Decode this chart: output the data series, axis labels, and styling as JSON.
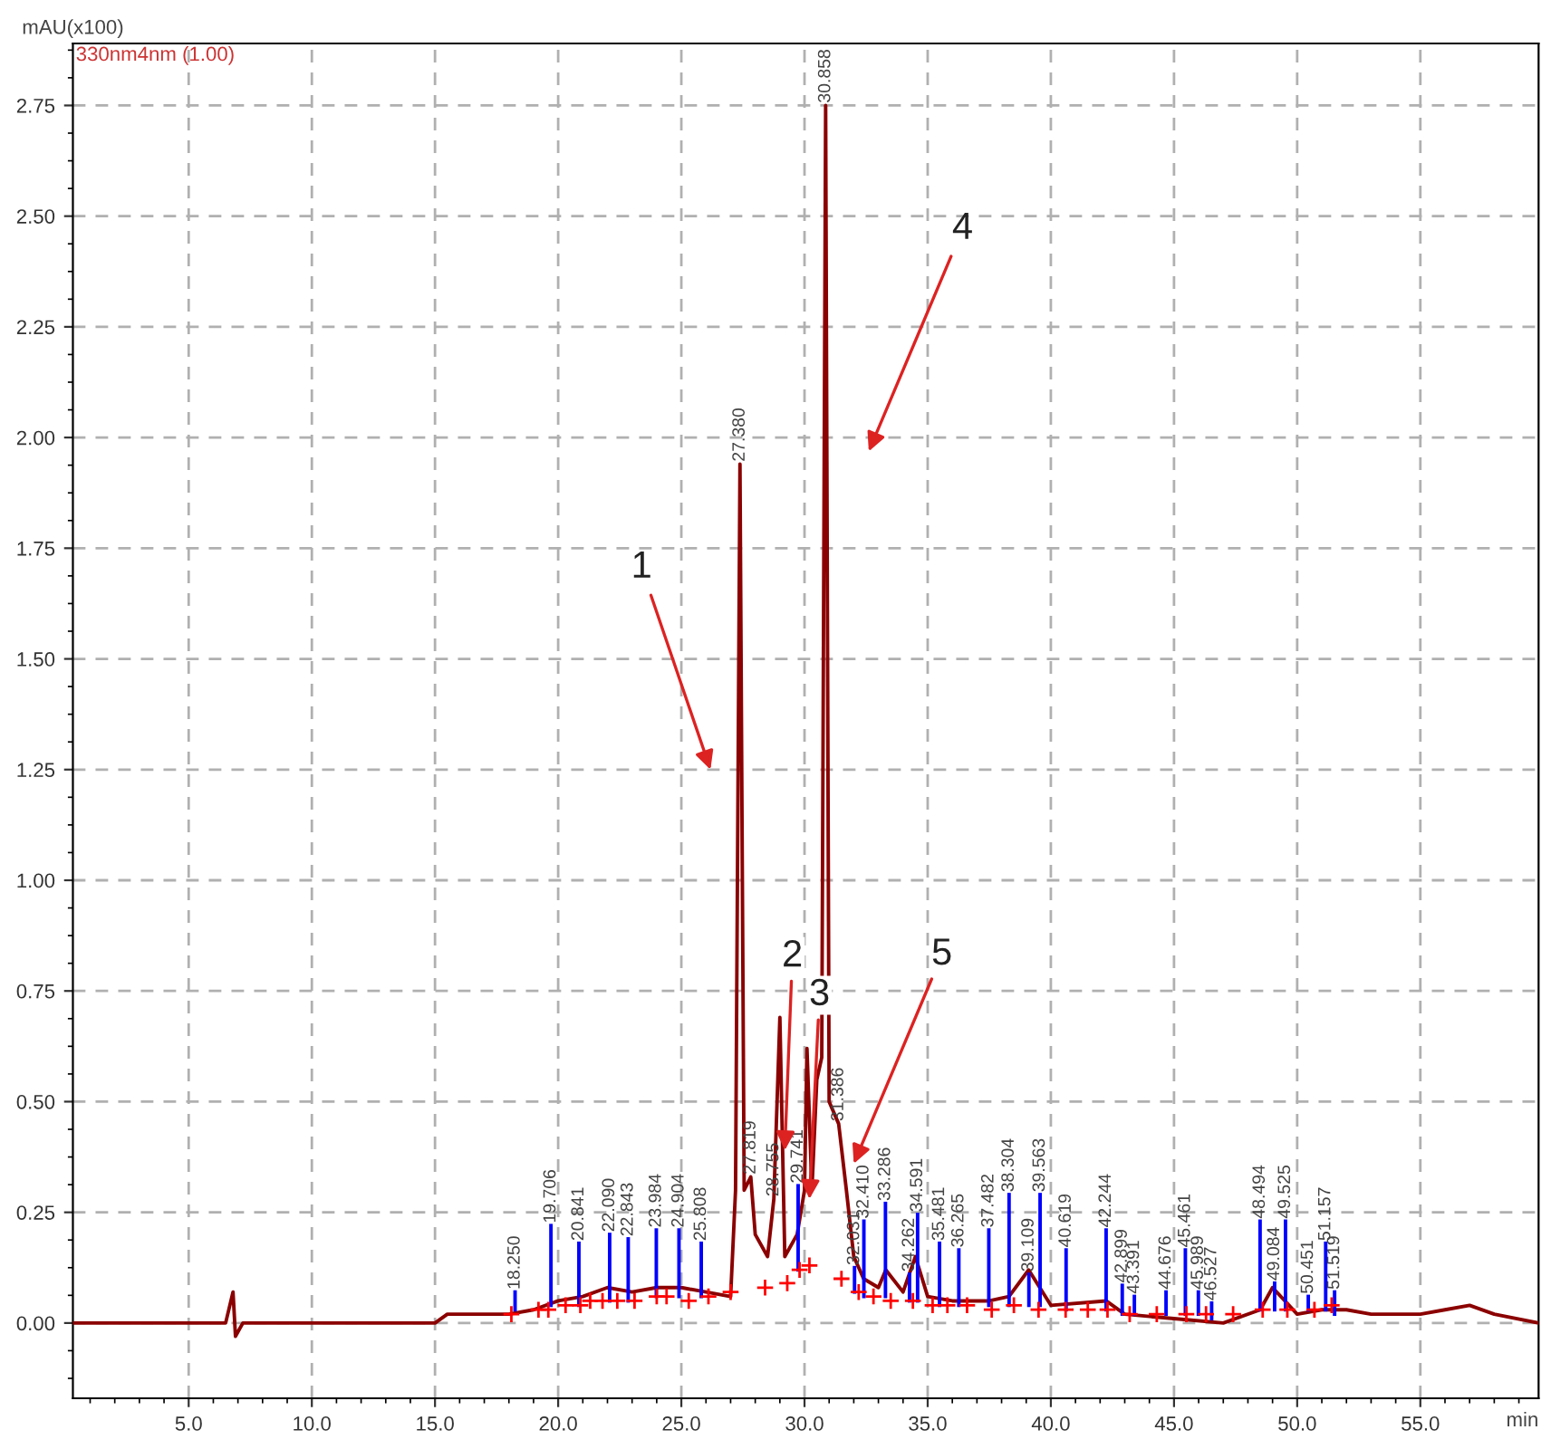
{
  "chart_data": {
    "type": "line",
    "xlabel": "min",
    "ylabel": "mAU(x100)",
    "xlim": [
      0.3,
      59.8
    ],
    "ylim": [
      -0.17,
      2.89
    ],
    "xticks": [
      {
        "value": 5,
        "label": "5.0"
      },
      {
        "value": 10,
        "label": "10.0"
      },
      {
        "value": 15,
        "label": "15.0"
      },
      {
        "value": 20,
        "label": "20.0"
      },
      {
        "value": 25,
        "label": "25.0"
      },
      {
        "value": 30,
        "label": "30.0"
      },
      {
        "value": 35,
        "label": "35.0"
      },
      {
        "value": 40,
        "label": "40.0"
      },
      {
        "value": 45,
        "label": "45.0"
      },
      {
        "value": 50,
        "label": "50.0"
      },
      {
        "value": 55,
        "label": "55.0"
      }
    ],
    "yticks": [
      {
        "value": 0,
        "label": "0.00"
      },
      {
        "value": 0.25,
        "label": "0.25"
      },
      {
        "value": 0.5,
        "label": "0.50"
      },
      {
        "value": 0.75,
        "label": "0.75"
      },
      {
        "value": 1,
        "label": "1.00"
      },
      {
        "value": 1.25,
        "label": "1.25"
      },
      {
        "value": 1.5,
        "label": "1.50"
      },
      {
        "value": 1.75,
        "label": "1.75"
      },
      {
        "value": 2,
        "label": "2.00"
      },
      {
        "value": 2.25,
        "label": "2.25"
      },
      {
        "value": 2.5,
        "label": "2.50"
      },
      {
        "value": 2.75,
        "label": "2.75"
      }
    ],
    "grid": true,
    "legend": false,
    "line_style": "solid",
    "series": [
      {
        "color": "#8b0000",
        "x": [
          0.3,
          6.5,
          6.8,
          6.9,
          7.2,
          15.0,
          15.5,
          18.0,
          19.0,
          20.0,
          21.0,
          22.0,
          23.0,
          24.0,
          25.0,
          26.0,
          27.0,
          27.2,
          27.38,
          27.55,
          27.819,
          28.0,
          28.5,
          28.755,
          29.0,
          29.2,
          29.7,
          30.0,
          30.1,
          30.3,
          30.5,
          30.7,
          30.858,
          31.0,
          31.386,
          31.7,
          32.0,
          32.4,
          33.0,
          33.3,
          34.0,
          34.5,
          35.0,
          36.0,
          37.5,
          38.3,
          39.1,
          40.0,
          42.244,
          43.0,
          45.0,
          47.0,
          48.5,
          49.0,
          50.0,
          51.0,
          52.0,
          53.0,
          55.0,
          56.0,
          57.0,
          58.0,
          59.8
        ],
        "values": [
          0.0,
          0.0,
          0.07,
          -0.03,
          0.0,
          0.0,
          0.02,
          0.02,
          0.03,
          0.05,
          0.06,
          0.08,
          0.07,
          0.08,
          0.08,
          0.07,
          0.06,
          0.3,
          1.94,
          0.3,
          0.33,
          0.2,
          0.15,
          0.28,
          0.69,
          0.15,
          0.2,
          0.3,
          0.62,
          0.3,
          0.55,
          0.6,
          2.75,
          0.5,
          0.45,
          0.3,
          0.15,
          0.1,
          0.08,
          0.12,
          0.07,
          0.15,
          0.06,
          0.05,
          0.05,
          0.06,
          0.12,
          0.04,
          0.05,
          0.02,
          0.01,
          0.0,
          0.03,
          0.08,
          0.02,
          0.03,
          0.03,
          0.02,
          0.02,
          0.03,
          0.04,
          0.02,
          0.0
        ]
      },
      {
        "color": "#0000ff",
        "x": [
          18.25,
          18.25
        ],
        "values": [
          0.03,
          0.07
        ]
      },
      {
        "color": "#0000ff",
        "x": [
          19.706,
          19.706
        ],
        "values": [
          0.04,
          0.22
        ]
      },
      {
        "color": "#0000ff",
        "x": [
          20.841,
          20.841
        ],
        "values": [
          0.04,
          0.18
        ]
      },
      {
        "color": "#0000ff",
        "x": [
          22.09,
          22.09
        ],
        "values": [
          0.05,
          0.2
        ]
      },
      {
        "color": "#0000ff",
        "x": [
          22.843,
          22.843
        ],
        "values": [
          0.05,
          0.19
        ]
      },
      {
        "color": "#0000ff",
        "x": [
          23.984,
          23.984
        ],
        "values": [
          0.06,
          0.21
        ]
      },
      {
        "color": "#0000ff",
        "x": [
          24.904,
          24.904
        ],
        "values": [
          0.06,
          0.21
        ]
      },
      {
        "color": "#0000ff",
        "x": [
          25.808,
          25.808
        ],
        "values": [
          0.06,
          0.18
        ]
      },
      {
        "color": "#0000ff",
        "x": [
          29.741,
          29.741
        ],
        "values": [
          0.12,
          0.31
        ]
      },
      {
        "color": "#0000ff",
        "x": [
          32.031,
          32.031
        ],
        "values": [
          0.07,
          0.125
        ]
      },
      {
        "color": "#0000ff",
        "x": [
          32.41,
          32.41
        ],
        "values": [
          0.06,
          0.23
        ]
      },
      {
        "color": "#0000ff",
        "x": [
          33.286,
          33.286
        ],
        "values": [
          0.06,
          0.27
        ]
      },
      {
        "color": "#0000ff",
        "x": [
          34.262,
          34.262
        ],
        "values": [
          0.05,
          0.11
        ]
      },
      {
        "color": "#0000ff",
        "x": [
          34.591,
          34.591
        ],
        "values": [
          0.05,
          0.245
        ]
      },
      {
        "color": "#0000ff",
        "x": [
          35.481,
          35.481
        ],
        "values": [
          0.04,
          0.18
        ]
      },
      {
        "color": "#0000ff",
        "x": [
          36.265,
          36.265
        ],
        "values": [
          0.04,
          0.165
        ]
      },
      {
        "color": "#0000ff",
        "x": [
          37.482,
          37.482
        ],
        "values": [
          0.04,
          0.21
        ]
      },
      {
        "color": "#0000ff",
        "x": [
          38.304,
          38.304
        ],
        "values": [
          0.04,
          0.29
        ]
      },
      {
        "color": "#0000ff",
        "x": [
          39.109,
          39.109
        ],
        "values": [
          0.04,
          0.11
        ]
      },
      {
        "color": "#0000ff",
        "x": [
          39.563,
          39.563
        ],
        "values": [
          0.04,
          0.29
        ]
      },
      {
        "color": "#0000ff",
        "x": [
          40.619,
          40.619
        ],
        "values": [
          0.03,
          0.165
        ]
      },
      {
        "color": "#0000ff",
        "x": [
          42.244,
          42.244
        ],
        "values": [
          0.03,
          0.21
        ]
      },
      {
        "color": "#0000ff",
        "x": [
          42.899,
          42.899
        ],
        "values": [
          0.02,
          0.085
        ]
      },
      {
        "color": "#0000ff",
        "x": [
          43.391,
          43.391
        ],
        "values": [
          0.02,
          0.06
        ]
      },
      {
        "color": "#0000ff",
        "x": [
          44.676,
          44.676
        ],
        "values": [
          0.02,
          0.07
        ]
      },
      {
        "color": "#0000ff",
        "x": [
          45.461,
          45.461
        ],
        "values": [
          0.02,
          0.165
        ]
      },
      {
        "color": "#0000ff",
        "x": [
          45.989,
          45.989
        ],
        "values": [
          0.02,
          0.07
        ]
      },
      {
        "color": "#0000ff",
        "x": [
          46.527,
          46.527
        ],
        "values": [
          0.01,
          0.045
        ]
      },
      {
        "color": "#0000ff",
        "x": [
          48.494,
          48.494
        ],
        "values": [
          0.03,
          0.23
        ]
      },
      {
        "color": "#0000ff",
        "x": [
          49.084,
          49.084
        ],
        "values": [
          0.03,
          0.09
        ]
      },
      {
        "color": "#0000ff",
        "x": [
          49.525,
          49.525
        ],
        "values": [
          0.03,
          0.23
        ]
      },
      {
        "color": "#0000ff",
        "x": [
          50.451,
          50.451
        ],
        "values": [
          0.03,
          0.06
        ]
      },
      {
        "color": "#0000ff",
        "x": [
          51.157,
          51.157
        ],
        "values": [
          0.03,
          0.18
        ]
      },
      {
        "color": "#0000ff",
        "x": [
          51.519,
          51.519
        ],
        "values": [
          0.02,
          0.07
        ]
      },
      {
        "type": "scatter",
        "marker": "cross",
        "color": "#ff0000",
        "x": [
          18.1,
          19.2,
          19.6,
          20.3,
          20.9,
          21.3,
          21.8,
          22.4,
          23.1,
          24.0,
          24.4,
          25.3,
          26.1,
          27.0,
          28.4,
          29.3,
          29.8,
          30.2,
          31.5,
          32.2,
          32.8,
          33.5,
          34.4,
          35.2,
          35.8,
          36.6,
          37.6,
          38.5,
          39.5,
          40.6,
          41.5,
          42.3,
          43.2,
          44.3,
          45.5,
          46.3,
          47.4,
          48.6,
          49.6,
          50.7,
          51.4
        ],
        "values": [
          0.02,
          0.03,
          0.03,
          0.04,
          0.04,
          0.05,
          0.05,
          0.05,
          0.05,
          0.06,
          0.06,
          0.05,
          0.06,
          0.07,
          0.08,
          0.09,
          0.12,
          0.13,
          0.1,
          0.07,
          0.06,
          0.05,
          0.05,
          0.04,
          0.04,
          0.04,
          0.03,
          0.04,
          0.03,
          0.03,
          0.03,
          0.03,
          0.02,
          0.02,
          0.02,
          0.02,
          0.02,
          0.03,
          0.03,
          0.03,
          0.04
        ]
      }
    ],
    "annotations": [
      "330nm4nm (1.00)",
      "1",
      "4",
      {
        "text": "18.250",
        "x": 18.25,
        "y": 0.07
      },
      {
        "text": "19.706",
        "x": 19.706,
        "y": 0.22
      },
      {
        "text": "20.841",
        "x": 20.841,
        "y": 0.18
      },
      {
        "text": "22.090",
        "x": 22.09,
        "y": 0.2
      },
      {
        "text": "22.843",
        "x": 22.843,
        "y": 0.19
      },
      {
        "text": "23.984",
        "x": 23.984,
        "y": 0.21
      },
      {
        "text": "24.904",
        "x": 24.904,
        "y": 0.21
      },
      {
        "text": "25.808",
        "x": 25.808,
        "y": 0.18
      },
      {
        "text": "27.380",
        "x": 27.38,
        "y": 1.94
      },
      {
        "text": "27.819",
        "x": 27.819,
        "y": 0.33
      },
      {
        "text": "28.755",
        "x": 28.755,
        "y": 0.28
      },
      {
        "text": "29.741",
        "x": 29.741,
        "y": 0.31
      },
      {
        "text": "30.858",
        "x": 30.858,
        "y": 2.75
      },
      {
        "text": "31.386",
        "x": 31.386,
        "y": 0.45
      },
      {
        "text": "32.031",
        "x": 32.031,
        "y": 0.125
      },
      {
        "text": "32.410",
        "x": 32.41,
        "y": 0.23
      },
      {
        "text": "33.286",
        "x": 33.286,
        "y": 0.27
      },
      {
        "text": "34.262",
        "x": 34.262,
        "y": 0.11
      },
      {
        "text": "34.591",
        "x": 34.591,
        "y": 0.245
      },
      {
        "text": "35.481",
        "x": 35.481,
        "y": 0.18
      },
      {
        "text": "36.265",
        "x": 36.265,
        "y": 0.165
      },
      {
        "text": "37.482",
        "x": 37.482,
        "y": 0.21
      },
      {
        "text": "38.304",
        "x": 38.304,
        "y": 0.29
      },
      {
        "text": "39.109",
        "x": 39.109,
        "y": 0.11
      },
      {
        "text": "39.563",
        "x": 39.563,
        "y": 0.29
      },
      {
        "text": "40.619",
        "x": 40.619,
        "y": 0.165
      },
      {
        "text": "42.244",
        "x": 42.244,
        "y": 0.21
      },
      {
        "text": "42.899",
        "x": 42.899,
        "y": 0.085
      },
      {
        "text": "43.391",
        "x": 43.391,
        "y": 0.06
      },
      {
        "text": "44.676",
        "x": 44.676,
        "y": 0.07
      },
      {
        "text": "45.461",
        "x": 45.461,
        "y": 0.165
      },
      {
        "text": "45.989",
        "x": 45.989,
        "y": 0.07
      },
      {
        "text": "46.527",
        "x": 46.527,
        "y": 0.045
      },
      {
        "text": "48.494",
        "x": 48.494,
        "y": 0.23
      },
      {
        "text": "49.084",
        "x": 49.084,
        "y": 0.09
      },
      {
        "text": "49.525",
        "x": 49.525,
        "y": 0.23
      },
      {
        "text": "50.451",
        "x": 50.451,
        "y": 0.06
      },
      {
        "text": "51.157",
        "x": 51.157,
        "y": 0.18
      },
      {
        "text": "51.519",
        "x": 51.519,
        "y": 0.07
      },
      {
        "text": "2",
        "x": 29.2,
        "y": 0.39
      },
      {
        "text": "3",
        "x": 30.2,
        "y": 0.28
      },
      {
        "text": "5",
        "x": 32.0,
        "y": 0.36
      }
    ]
  }
}
